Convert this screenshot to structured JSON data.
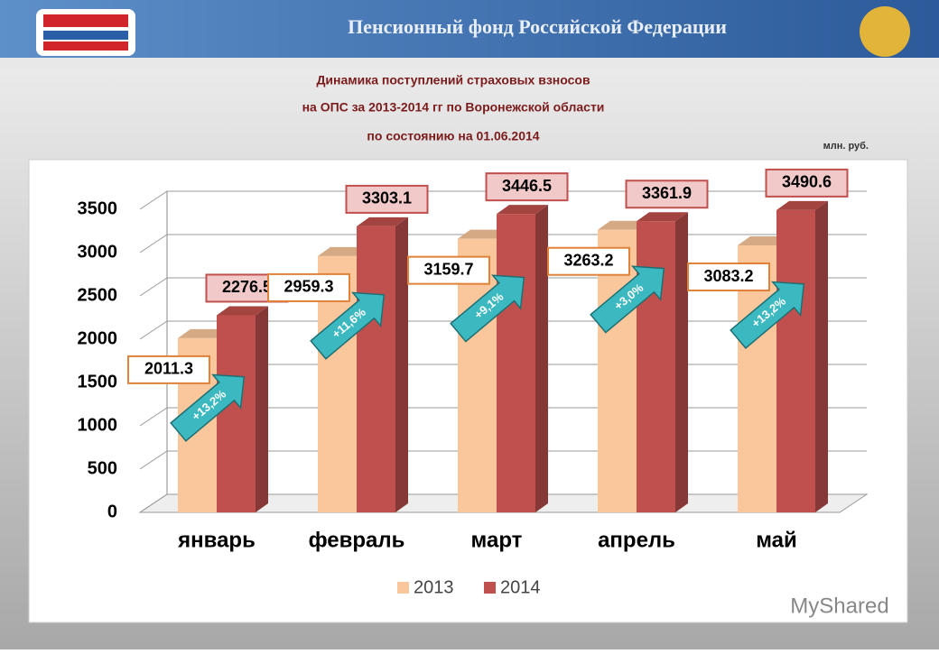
{
  "header": "Пенсионный фонд Российской Федерации",
  "watermark": "MyShared",
  "chart_data": {
    "type": "bar",
    "title": [
      "Динамика поступлений страховых взносов",
      "на ОПС за 2013-2014 гг по Воронежской области",
      "по состоянию на 01.06.2014"
    ],
    "unit_label": "млн. руб.",
    "categories": [
      "январь",
      "февраль",
      "март",
      "апрель",
      "май"
    ],
    "series": [
      {
        "name": "2013",
        "color": "#f9c79b",
        "values": [
          2011.3,
          2959.3,
          3159.7,
          3263.2,
          3083.2
        ]
      },
      {
        "name": "2014",
        "color": "#c0504d",
        "values": [
          2276.5,
          3303.1,
          3446.5,
          3361.9,
          3490.6
        ]
      }
    ],
    "annotations": [
      "+13,2%",
      "+11,6%",
      "+9,1%",
      "+3,0%",
      "+13,2%"
    ],
    "ylim": [
      0,
      3500
    ],
    "yticks": [
      0,
      500,
      1000,
      1500,
      2000,
      2500,
      3000,
      3500
    ],
    "grid": true
  }
}
